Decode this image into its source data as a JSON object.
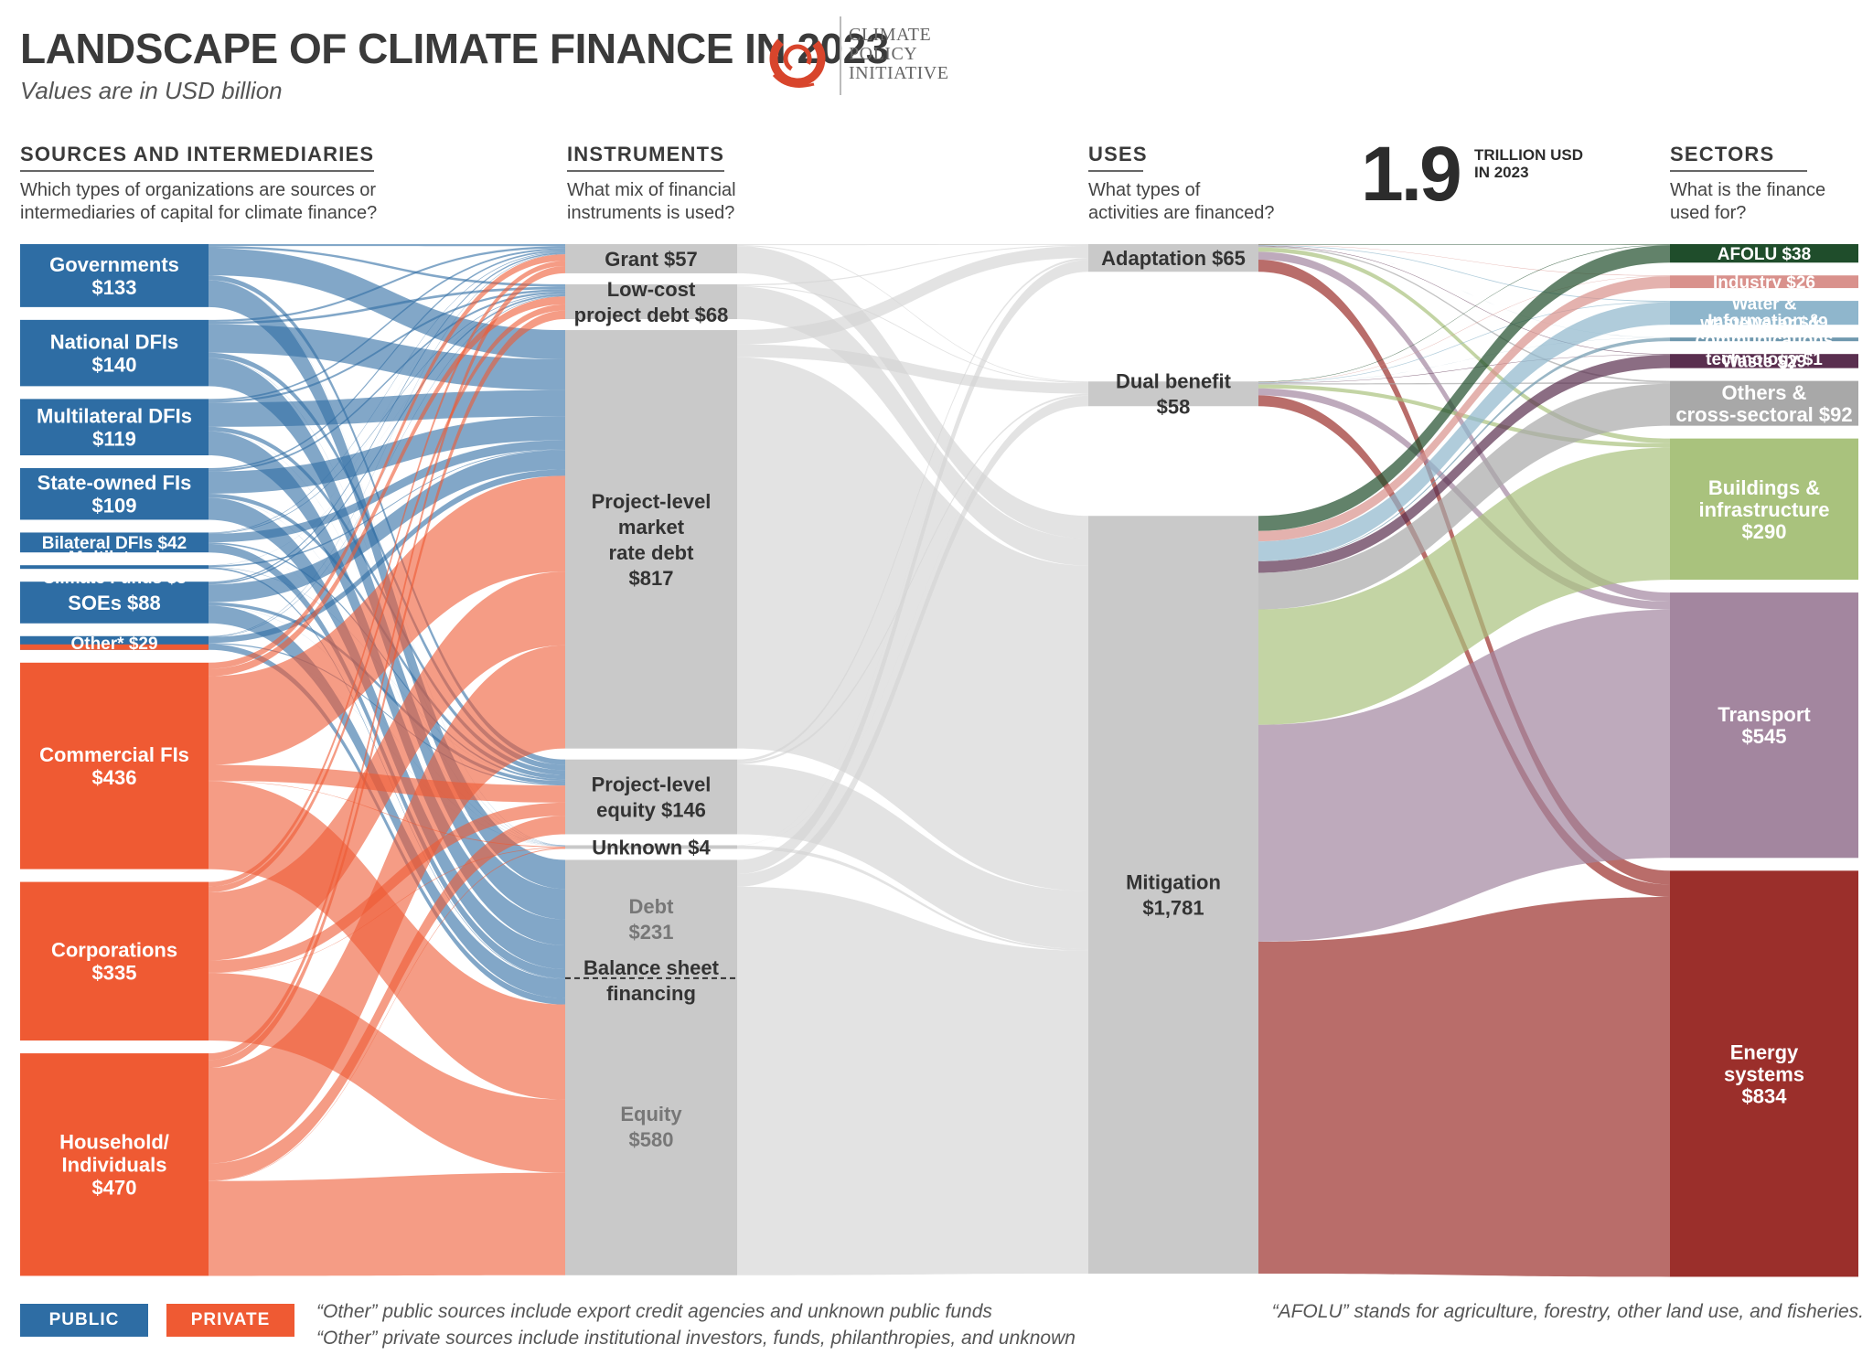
{
  "header": {
    "title": "LANDSCAPE OF CLIMATE FINANCE IN 2023",
    "subtitle": "Values are in USD billion",
    "logo_text": [
      "CLIMATE",
      "POLICY",
      "INITIATIVE"
    ]
  },
  "columns": {
    "sources": {
      "heading": "SOURCES AND INTERMEDIARIES",
      "question": [
        "Which types of organizations are sources or",
        "intermediaries of capital for climate finance?"
      ]
    },
    "instruments": {
      "heading": "INSTRUMENTS",
      "question": [
        "What mix of financial",
        "instruments is used?"
      ]
    },
    "uses": {
      "heading": "USES",
      "question": [
        "What types of",
        "activities are financed?"
      ]
    },
    "sectors": {
      "heading": "SECTORS",
      "question": [
        "What is the finance",
        "used for?"
      ]
    }
  },
  "total": {
    "value": "1.9",
    "unit_line1": "TRILLION USD",
    "unit_line2": "IN 2023"
  },
  "colors": {
    "public": "#2e6da4",
    "private": "#ef5a33",
    "node_gray": "#c9c9c9",
    "flow_public": "#2e6da4",
    "flow_private": "#ef5a33",
    "flow_gray": "#d4d4d4"
  },
  "chart_data": {
    "type": "sankey",
    "unit": "USD billion",
    "sources": [
      {
        "id": "gov",
        "name": "Governments",
        "value": 133,
        "type": "public",
        "label": [
          "Governments",
          "$133"
        ]
      },
      {
        "id": "ndfi",
        "name": "National DFIs",
        "value": 140,
        "type": "public",
        "label": [
          "National DFIs",
          "$140"
        ]
      },
      {
        "id": "mdfi",
        "name": "Multilateral DFIs",
        "value": 119,
        "type": "public",
        "label": [
          "Multilateral DFIs",
          "$119"
        ]
      },
      {
        "id": "sofi",
        "name": "State-owned FIs",
        "value": 109,
        "type": "public",
        "label": [
          "State-owned FIs",
          "$109"
        ]
      },
      {
        "id": "bdfi",
        "name": "Bilateral DFIs",
        "value": 42,
        "type": "public",
        "label": [
          "Bilateral DFIs $42"
        ]
      },
      {
        "id": "mcf",
        "name": "Multilateral Climate Funds",
        "value": 3,
        "type": "public",
        "label": [
          "Multilateral",
          "Climate Funds $3"
        ]
      },
      {
        "id": "soe",
        "name": "SOEs",
        "value": 88,
        "type": "public",
        "label": [
          "SOEs $88"
        ]
      },
      {
        "id": "oth",
        "name": "Other*",
        "value": 29,
        "type": "mixed",
        "label": [
          "Other* $29"
        ]
      },
      {
        "id": "cfi",
        "name": "Commercial FIs",
        "value": 436,
        "type": "private",
        "label": [
          "Commercial FIs",
          "$436"
        ]
      },
      {
        "id": "corp",
        "name": "Corporations",
        "value": 335,
        "type": "private",
        "label": [
          "Corporations",
          "$335"
        ]
      },
      {
        "id": "hh",
        "name": "Household/ Individuals",
        "value": 470,
        "type": "private",
        "label": [
          "Household/",
          "Individuals",
          "$470"
        ]
      }
    ],
    "instruments": [
      {
        "id": "grant",
        "name": "Grant",
        "value": 57,
        "label": [
          "Grant $57"
        ]
      },
      {
        "id": "lowcost",
        "name": "Low-cost project debt",
        "value": 68,
        "label": [
          "Low-cost",
          "project debt $68"
        ]
      },
      {
        "id": "plmrd",
        "name": "Project-level market rate debt",
        "value": 817,
        "label": [
          "Project-level",
          "market",
          "rate debt",
          "$817"
        ]
      },
      {
        "id": "ple",
        "name": "Project-level equity",
        "value": 146,
        "label": [
          "Project-level",
          "equity $146"
        ]
      },
      {
        "id": "unk",
        "name": "Unknown",
        "value": 4,
        "label": [
          "Unknown $4"
        ]
      },
      {
        "id": "bsf",
        "name": "Balance sheet financing",
        "value": 811,
        "label": [
          "Balance sheet",
          "financing"
        ],
        "parts": [
          {
            "name": "Debt",
            "value": 231,
            "label": [
              "Debt",
              "$231"
            ]
          },
          {
            "name": "Equity",
            "value": 580,
            "label": [
              "Equity",
              "$580"
            ]
          }
        ]
      }
    ],
    "uses": [
      {
        "id": "adapt",
        "name": "Adaptation",
        "value": 65,
        "label": [
          "Adaptation $65"
        ]
      },
      {
        "id": "dual",
        "name": "Dual benefit",
        "value": 58,
        "label": [
          "Dual benefit",
          "$58"
        ]
      },
      {
        "id": "mitig",
        "name": "Mitigation",
        "value": 1781,
        "label": [
          "Mitigation",
          "$1,781"
        ]
      }
    ],
    "sectors": [
      {
        "id": "afolu",
        "name": "AFOLU",
        "value": 38,
        "color": "#1f4d2b",
        "label": [
          "AFOLU $38"
        ]
      },
      {
        "id": "industry",
        "name": "Industry",
        "value": 26,
        "color": "#d9918c",
        "label": [
          "Industry $26"
        ]
      },
      {
        "id": "water",
        "name": "Water & wastewater",
        "value": 49,
        "color": "#8fb6cc",
        "label": [
          "Water &",
          "wastewater $49"
        ]
      },
      {
        "id": "ict",
        "name": "Information & communications technology",
        "value": 1,
        "color": "#6f98ae",
        "label": [
          "Information &",
          "communications",
          "technology $1"
        ]
      },
      {
        "id": "waste",
        "name": "Waste",
        "value": 29,
        "color": "#5a2f4f",
        "label": [
          "Waste $29"
        ]
      },
      {
        "id": "others",
        "name": "Others & cross-sectoral",
        "value": 92,
        "color": "#a8a8a8",
        "label": [
          "Others &",
          "cross-sectoral $92"
        ]
      },
      {
        "id": "build",
        "name": "Buildings & infrastructure",
        "value": 290,
        "color": "#a9c27d",
        "label": [
          "Buildings &",
          "infrastructure",
          "$290"
        ]
      },
      {
        "id": "transport",
        "name": "Transport",
        "value": 545,
        "color": "#a3869f",
        "label": [
          "Transport",
          "$545"
        ]
      },
      {
        "id": "energy",
        "name": "Energy systems",
        "value": 834,
        "color": "#9b2f2b",
        "label": [
          "Energy",
          "systems",
          "$834"
        ]
      }
    ]
  },
  "legend": {
    "public_label": "PUBLIC",
    "private_label": "PRIVATE"
  },
  "footnotes": {
    "other_public": "“Other” public sources include export credit agencies and unknown public funds",
    "other_private": "“Other” private sources include institutional investors, funds, philanthropies, and unknown",
    "afolu": "“AFOLU” stands for agriculture, forestry, other land use, and fisheries."
  }
}
